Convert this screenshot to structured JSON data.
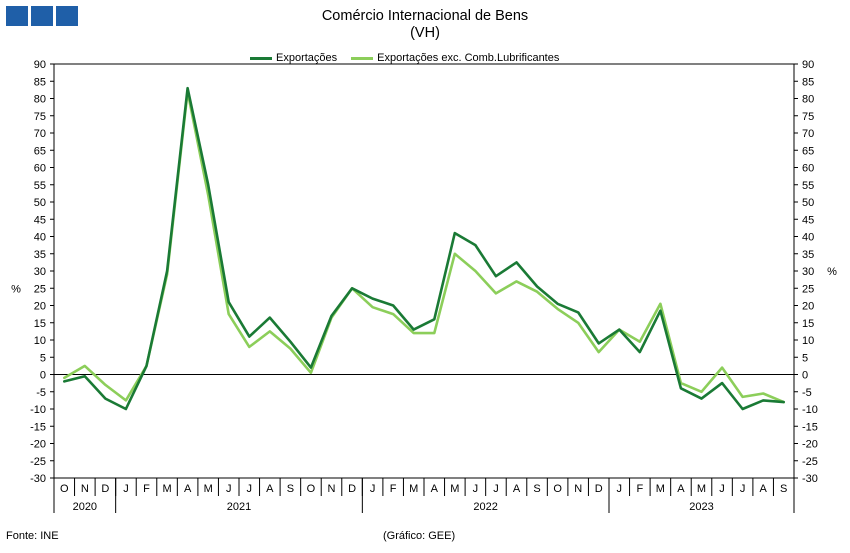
{
  "title": "Comércio Internacional de Bens",
  "subtitle": "(VH)",
  "footer": {
    "source": "Fonte: INE",
    "credit": "(Gráfico: GEE)"
  },
  "colors": {
    "logo": "#1f5fa8",
    "exports": "#1a7a35",
    "exports_excl": "#8cce5a"
  },
  "logo_icon": "three-blue-squares",
  "chart_data": {
    "type": "line",
    "ylabel_left": "%",
    "ylabel_right": "%",
    "ylim": [
      -30,
      90
    ],
    "yticks": [
      -30,
      -25,
      -20,
      -15,
      -10,
      -5,
      0,
      5,
      10,
      15,
      20,
      25,
      30,
      35,
      40,
      45,
      50,
      55,
      60,
      65,
      70,
      75,
      80,
      85,
      90
    ],
    "legend_position": "top-center",
    "grid": false,
    "months": [
      "O",
      "N",
      "D",
      "J",
      "F",
      "M",
      "A",
      "M",
      "J",
      "J",
      "A",
      "S",
      "O",
      "N",
      "D",
      "J",
      "F",
      "M",
      "A",
      "M",
      "J",
      "J",
      "A",
      "S",
      "O",
      "N",
      "D",
      "J",
      "F",
      "M",
      "A",
      "M",
      "J",
      "J",
      "A",
      "S"
    ],
    "years": [
      {
        "label": "2020",
        "start": 0,
        "end": 3
      },
      {
        "label": "2021",
        "start": 3,
        "end": 15
      },
      {
        "label": "2022",
        "start": 15,
        "end": 27
      },
      {
        "label": "2023",
        "start": 27,
        "end": 36
      }
    ],
    "series": [
      {
        "name": "Exportações",
        "color": "#1a7a35",
        "values": [
          -2,
          -0.5,
          -7,
          -10,
          2.5,
          30,
          83,
          55,
          21,
          11,
          16.5,
          9.5,
          2,
          17,
          25,
          22,
          20,
          13,
          16,
          41,
          37.5,
          28.5,
          32.5,
          25.5,
          20.5,
          18,
          9,
          13,
          6.5,
          18.5,
          -4,
          -7,
          -2.5,
          -10,
          -7.5,
          -8
        ]
      },
      {
        "name": "Exportações exc. Comb.Lubrificantes",
        "color": "#8cce5a",
        "values": [
          -1,
          2.5,
          -3,
          -7.5,
          2.5,
          29,
          82,
          52,
          17.5,
          8,
          12.5,
          7.5,
          0.5,
          16.5,
          25,
          19.5,
          17.5,
          12,
          12,
          35,
          30,
          23.5,
          27,
          24,
          19,
          15,
          6.5,
          13,
          9.5,
          20.5,
          -2.5,
          -5,
          2,
          -6.5,
          -5.5,
          -8
        ]
      }
    ]
  }
}
